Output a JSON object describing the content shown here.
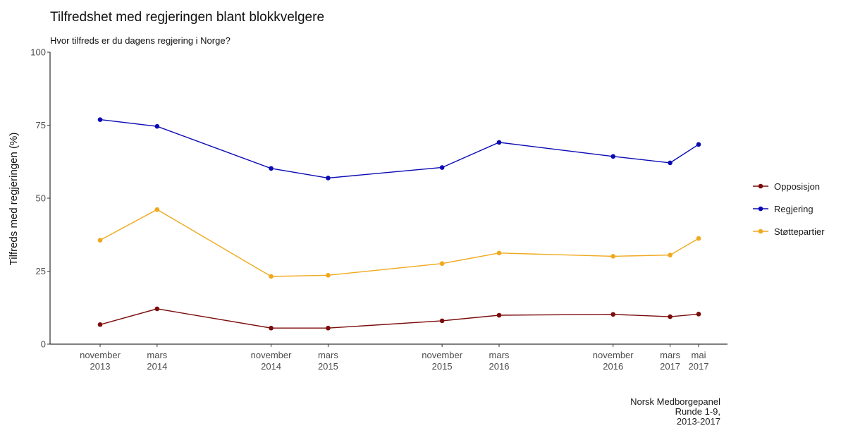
{
  "chart_data": {
    "type": "line",
    "title": "Tilfredshet med regjeringen blant blokkvelgere",
    "subtitle": "Hvor tilfreds er du dagens regjering i Norge?",
    "xlabel": "",
    "ylabel": "Tilfreds med regjeringen (%)",
    "ylim": [
      0,
      100
    ],
    "yticks": [
      0,
      25,
      50,
      75,
      100
    ],
    "grid": false,
    "legend_position": "right",
    "x_time_index": [
      0,
      4,
      12,
      16,
      24,
      28,
      36,
      40,
      42
    ],
    "x": [
      [
        "november",
        "2013"
      ],
      [
        "mars",
        "2014"
      ],
      [
        "november",
        "2014"
      ],
      [
        "mars",
        "2015"
      ],
      [
        "november",
        "2015"
      ],
      [
        "mars",
        "2016"
      ],
      [
        "november",
        "2016"
      ],
      [
        "mars",
        "2017"
      ],
      [
        "mai",
        "2017"
      ]
    ],
    "series": [
      {
        "name": "Opposisjon",
        "color": "#7b0c0c",
        "values": [
          6.7,
          12.1,
          5.5,
          5.5,
          8.0,
          9.9,
          10.2,
          9.4,
          10.3
        ]
      },
      {
        "name": "Regjering",
        "color": "#0a0ab4",
        "values": [
          76.9,
          74.6,
          60.2,
          56.9,
          60.5,
          69.1,
          64.3,
          62.1,
          68.4
        ]
      },
      {
        "name": "Støttepartier",
        "color": "#f0a91e",
        "values": [
          35.6,
          46.1,
          23.2,
          23.6,
          27.6,
          31.2,
          30.1,
          30.5,
          36.2
        ]
      }
    ],
    "caption": [
      "Norsk Medborgepanel",
      "Runde 1-9,",
      "2013-2017"
    ]
  }
}
